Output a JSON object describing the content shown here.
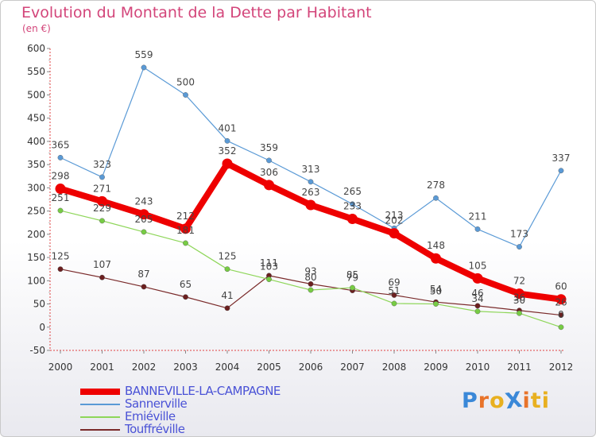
{
  "chart_data": {
    "type": "line",
    "title": "Evolution du Montant de la Dette par Habitant",
    "subtitle": "(en €)",
    "x": [
      "2000",
      "2001",
      "2002",
      "2003",
      "2004",
      "2005",
      "2006",
      "2007",
      "2008",
      "2009",
      "2010",
      "2011",
      "2012"
    ],
    "ylim": [
      -50,
      600
    ],
    "yticks": [
      -50,
      0,
      50,
      100,
      150,
      200,
      250,
      300,
      350,
      400,
      450,
      500,
      550,
      600
    ],
    "grid": false,
    "legend_position": "bottom-left",
    "series": [
      {
        "name": "BANNEVILLE-LA-CAMPAGNE",
        "color": "#ee0000",
        "width": 8,
        "marker_color": "#ee0000",
        "values": [
          298,
          271,
          243,
          212,
          352,
          306,
          263,
          233,
          202,
          148,
          105,
          72,
          60
        ]
      },
      {
        "name": "Sannerville",
        "color": "#5a9ad6",
        "width": 1.2,
        "marker_color": "#5a9ad6",
        "values": [
          365,
          323,
          559,
          500,
          401,
          359,
          313,
          265,
          213,
          278,
          211,
          173,
          337
        ]
      },
      {
        "name": "Emiéville",
        "color": "#8ed659",
        "width": 1.2,
        "marker_color": "#77cc44",
        "values": [
          251,
          229,
          205,
          181,
          125,
          103,
          80,
          85,
          51,
          50,
          34,
          30,
          0
        ]
      },
      {
        "name": "Touffréville",
        "color": "#7a2a2a",
        "width": 1.2,
        "marker_color": "#6b1f1f",
        "values": [
          125,
          107,
          87,
          65,
          41,
          111,
          93,
          79,
          69,
          54,
          46,
          36,
          26
        ]
      }
    ]
  },
  "logo": {
    "text": "ProXiti",
    "colors": [
      "#3a88d8",
      "#e8732a",
      "#e8b020",
      "#3a88d8",
      "#e8732a",
      "#e8b020",
      "#e8b020"
    ]
  }
}
